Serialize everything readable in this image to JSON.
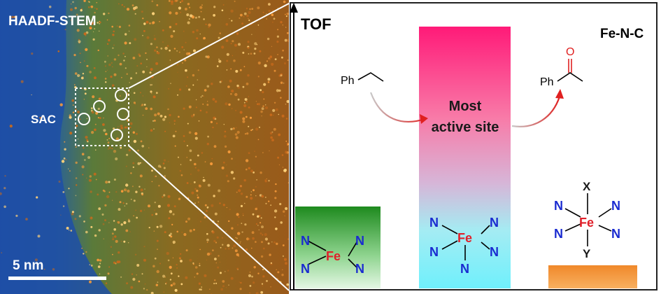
{
  "left_panel": {
    "title": "HAADF-STEM",
    "sac_label": "SAC",
    "scale_bar_label": "5 nm"
  },
  "right_panel": {
    "axis_label": "TOF",
    "material_label": "Fe-N-C",
    "center_bar_label_line1": "Most",
    "center_bar_label_line2": "active site",
    "reactant_label": "Ph",
    "product_label_ph": "Ph",
    "product_label_o": "O",
    "site_left": {
      "center": "Fe",
      "ligand": "N"
    },
    "site_middle": {
      "center": "Fe",
      "ligand": "N"
    },
    "site_right": {
      "center": "Fe",
      "ligand": "N",
      "top": "X",
      "bottom": "Y"
    }
  },
  "colors": {
    "stem_background": "#2a55a8",
    "stem_dots": "#ff9a3c",
    "left_bar": "#2e8b2e",
    "center_bar_top": "#ff1a7a",
    "center_bar_bottom": "#7ff4ff",
    "right_bar": "#f08a2a",
    "fe_atom": "#e0202a",
    "n_atom": "#1a2bd0"
  }
}
